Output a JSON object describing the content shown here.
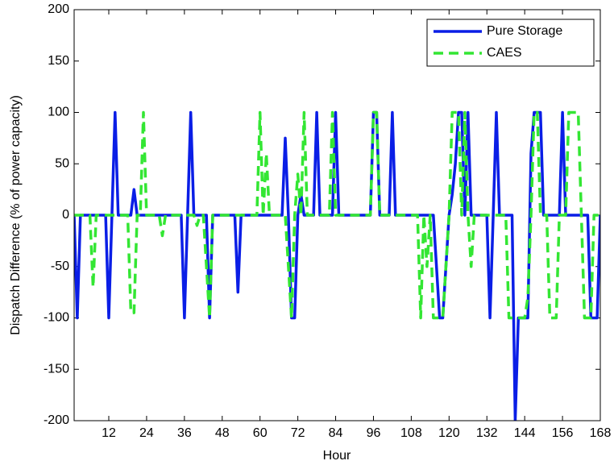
{
  "chart_data": {
    "type": "line",
    "xlabel": "Hour",
    "ylabel": "Dispatch Difference (% of power capacity)",
    "xlim": [
      1,
      168
    ],
    "ylim": [
      -200,
      200
    ],
    "xticks": [
      12,
      24,
      36,
      48,
      60,
      72,
      84,
      96,
      108,
      120,
      132,
      144,
      156,
      168
    ],
    "yticks": [
      -200,
      -150,
      -100,
      -50,
      0,
      50,
      100,
      150,
      200
    ],
    "legend": "upper right",
    "series": [
      {
        "name": "Pure Storage",
        "color": "#0a1ee6",
        "dash": false,
        "x": [
          1,
          2,
          3,
          11,
          12,
          14,
          15,
          19,
          20,
          21,
          35,
          36,
          38,
          39,
          43,
          44,
          45,
          52,
          53,
          54,
          67,
          68,
          69,
          70,
          71,
          72,
          73,
          74,
          77,
          78,
          79,
          83,
          84,
          85,
          95,
          96,
          97,
          98,
          101,
          102,
          103,
          115,
          116,
          117,
          118,
          119,
          120,
          121,
          122,
          123,
          124,
          125,
          126,
          127,
          132,
          133,
          134,
          135,
          136,
          140,
          141,
          142,
          145,
          146,
          147,
          149,
          150,
          155,
          156,
          157,
          164,
          165,
          167,
          168
        ],
        "values": [
          0,
          -100,
          0,
          0,
          -100,
          100,
          0,
          0,
          25,
          0,
          0,
          -100,
          100,
          0,
          0,
          -100,
          0,
          0,
          -75,
          0,
          0,
          75,
          0,
          -100,
          -100,
          0,
          20,
          0,
          0,
          100,
          0,
          0,
          100,
          0,
          0,
          100,
          100,
          0,
          0,
          100,
          0,
          0,
          -50,
          -100,
          -100,
          -50,
          0,
          20,
          50,
          100,
          100,
          0,
          100,
          0,
          0,
          -100,
          0,
          100,
          0,
          0,
          -200,
          -100,
          -100,
          60,
          100,
          100,
          0,
          0,
          100,
          0,
          0,
          -100,
          -100,
          0
        ]
      },
      {
        "name": "CAES",
        "color": "#33e633",
        "dash": true,
        "x": [
          1,
          6,
          7,
          8,
          18,
          19,
          20,
          21,
          22,
          23,
          24,
          28,
          29,
          30,
          39,
          40,
          41,
          42,
          43,
          44,
          45,
          59,
          60,
          61,
          62,
          63,
          68,
          69,
          70,
          71,
          72,
          73,
          74,
          75,
          82,
          83,
          84,
          95,
          96,
          97,
          98,
          110,
          111,
          112,
          113,
          114,
          115,
          118,
          119,
          120,
          121,
          123,
          124,
          125,
          126,
          127,
          128,
          138,
          139,
          144,
          145,
          146,
          147,
          148,
          149,
          151,
          152,
          154,
          155,
          157,
          158,
          161,
          162,
          163,
          165,
          166,
          168
        ],
        "values": [
          0,
          0,
          -70,
          0,
          0,
          -95,
          -95,
          0,
          0,
          100,
          0,
          0,
          -20,
          0,
          0,
          -10,
          0,
          0,
          -50,
          -100,
          0,
          0,
          100,
          0,
          60,
          0,
          0,
          -50,
          -100,
          0,
          40,
          0,
          100,
          0,
          0,
          100,
          0,
          0,
          100,
          100,
          0,
          0,
          -100,
          0,
          -50,
          0,
          -100,
          -100,
          -50,
          0,
          100,
          100,
          0,
          100,
          0,
          -50,
          0,
          0,
          -100,
          -100,
          -80,
          0,
          100,
          100,
          0,
          0,
          -100,
          -100,
          0,
          0,
          100,
          100,
          0,
          -100,
          -100,
          0,
          0
        ]
      }
    ]
  }
}
